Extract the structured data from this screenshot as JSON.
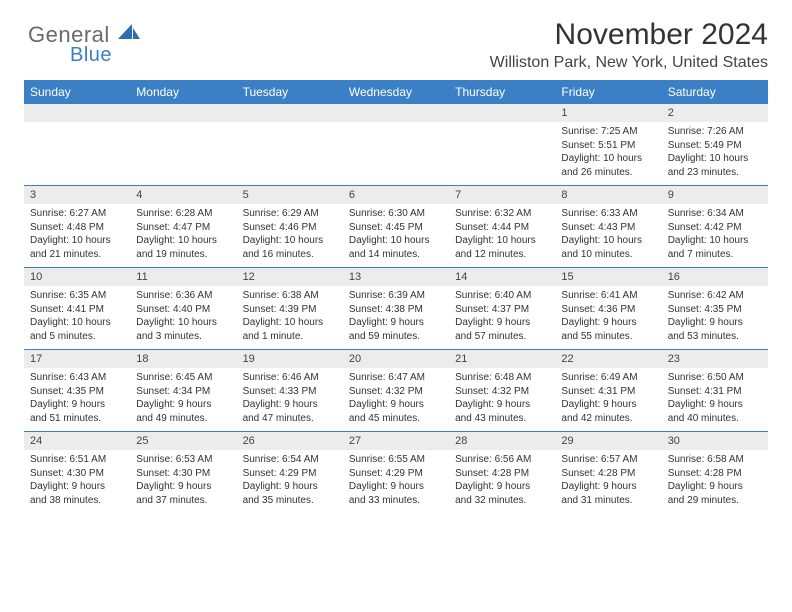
{
  "logo": {
    "text1": "General",
    "text2": "Blue",
    "sail_color": "#2f6db3"
  },
  "header": {
    "title": "November 2024",
    "subtitle": "Williston Park, New York, United States"
  },
  "colors": {
    "header_bg": "#3b7fc4",
    "header_text": "#ffffff",
    "daynum_bg": "#ececec",
    "row_divider": "#3b7fc4",
    "body_text": "#333333"
  },
  "day_headers": [
    "Sunday",
    "Monday",
    "Tuesday",
    "Wednesday",
    "Thursday",
    "Friday",
    "Saturday"
  ],
  "weeks": [
    [
      {
        "n": "",
        "sunrise": "",
        "sunset": "",
        "daylight": ""
      },
      {
        "n": "",
        "sunrise": "",
        "sunset": "",
        "daylight": ""
      },
      {
        "n": "",
        "sunrise": "",
        "sunset": "",
        "daylight": ""
      },
      {
        "n": "",
        "sunrise": "",
        "sunset": "",
        "daylight": ""
      },
      {
        "n": "",
        "sunrise": "",
        "sunset": "",
        "daylight": ""
      },
      {
        "n": "1",
        "sunrise": "Sunrise: 7:25 AM",
        "sunset": "Sunset: 5:51 PM",
        "daylight": "Daylight: 10 hours and 26 minutes."
      },
      {
        "n": "2",
        "sunrise": "Sunrise: 7:26 AM",
        "sunset": "Sunset: 5:49 PM",
        "daylight": "Daylight: 10 hours and 23 minutes."
      }
    ],
    [
      {
        "n": "3",
        "sunrise": "Sunrise: 6:27 AM",
        "sunset": "Sunset: 4:48 PM",
        "daylight": "Daylight: 10 hours and 21 minutes."
      },
      {
        "n": "4",
        "sunrise": "Sunrise: 6:28 AM",
        "sunset": "Sunset: 4:47 PM",
        "daylight": "Daylight: 10 hours and 19 minutes."
      },
      {
        "n": "5",
        "sunrise": "Sunrise: 6:29 AM",
        "sunset": "Sunset: 4:46 PM",
        "daylight": "Daylight: 10 hours and 16 minutes."
      },
      {
        "n": "6",
        "sunrise": "Sunrise: 6:30 AM",
        "sunset": "Sunset: 4:45 PM",
        "daylight": "Daylight: 10 hours and 14 minutes."
      },
      {
        "n": "7",
        "sunrise": "Sunrise: 6:32 AM",
        "sunset": "Sunset: 4:44 PM",
        "daylight": "Daylight: 10 hours and 12 minutes."
      },
      {
        "n": "8",
        "sunrise": "Sunrise: 6:33 AM",
        "sunset": "Sunset: 4:43 PM",
        "daylight": "Daylight: 10 hours and 10 minutes."
      },
      {
        "n": "9",
        "sunrise": "Sunrise: 6:34 AM",
        "sunset": "Sunset: 4:42 PM",
        "daylight": "Daylight: 10 hours and 7 minutes."
      }
    ],
    [
      {
        "n": "10",
        "sunrise": "Sunrise: 6:35 AM",
        "sunset": "Sunset: 4:41 PM",
        "daylight": "Daylight: 10 hours and 5 minutes."
      },
      {
        "n": "11",
        "sunrise": "Sunrise: 6:36 AM",
        "sunset": "Sunset: 4:40 PM",
        "daylight": "Daylight: 10 hours and 3 minutes."
      },
      {
        "n": "12",
        "sunrise": "Sunrise: 6:38 AM",
        "sunset": "Sunset: 4:39 PM",
        "daylight": "Daylight: 10 hours and 1 minute."
      },
      {
        "n": "13",
        "sunrise": "Sunrise: 6:39 AM",
        "sunset": "Sunset: 4:38 PM",
        "daylight": "Daylight: 9 hours and 59 minutes."
      },
      {
        "n": "14",
        "sunrise": "Sunrise: 6:40 AM",
        "sunset": "Sunset: 4:37 PM",
        "daylight": "Daylight: 9 hours and 57 minutes."
      },
      {
        "n": "15",
        "sunrise": "Sunrise: 6:41 AM",
        "sunset": "Sunset: 4:36 PM",
        "daylight": "Daylight: 9 hours and 55 minutes."
      },
      {
        "n": "16",
        "sunrise": "Sunrise: 6:42 AM",
        "sunset": "Sunset: 4:35 PM",
        "daylight": "Daylight: 9 hours and 53 minutes."
      }
    ],
    [
      {
        "n": "17",
        "sunrise": "Sunrise: 6:43 AM",
        "sunset": "Sunset: 4:35 PM",
        "daylight": "Daylight: 9 hours and 51 minutes."
      },
      {
        "n": "18",
        "sunrise": "Sunrise: 6:45 AM",
        "sunset": "Sunset: 4:34 PM",
        "daylight": "Daylight: 9 hours and 49 minutes."
      },
      {
        "n": "19",
        "sunrise": "Sunrise: 6:46 AM",
        "sunset": "Sunset: 4:33 PM",
        "daylight": "Daylight: 9 hours and 47 minutes."
      },
      {
        "n": "20",
        "sunrise": "Sunrise: 6:47 AM",
        "sunset": "Sunset: 4:32 PM",
        "daylight": "Daylight: 9 hours and 45 minutes."
      },
      {
        "n": "21",
        "sunrise": "Sunrise: 6:48 AM",
        "sunset": "Sunset: 4:32 PM",
        "daylight": "Daylight: 9 hours and 43 minutes."
      },
      {
        "n": "22",
        "sunrise": "Sunrise: 6:49 AM",
        "sunset": "Sunset: 4:31 PM",
        "daylight": "Daylight: 9 hours and 42 minutes."
      },
      {
        "n": "23",
        "sunrise": "Sunrise: 6:50 AM",
        "sunset": "Sunset: 4:31 PM",
        "daylight": "Daylight: 9 hours and 40 minutes."
      }
    ],
    [
      {
        "n": "24",
        "sunrise": "Sunrise: 6:51 AM",
        "sunset": "Sunset: 4:30 PM",
        "daylight": "Daylight: 9 hours and 38 minutes."
      },
      {
        "n": "25",
        "sunrise": "Sunrise: 6:53 AM",
        "sunset": "Sunset: 4:30 PM",
        "daylight": "Daylight: 9 hours and 37 minutes."
      },
      {
        "n": "26",
        "sunrise": "Sunrise: 6:54 AM",
        "sunset": "Sunset: 4:29 PM",
        "daylight": "Daylight: 9 hours and 35 minutes."
      },
      {
        "n": "27",
        "sunrise": "Sunrise: 6:55 AM",
        "sunset": "Sunset: 4:29 PM",
        "daylight": "Daylight: 9 hours and 33 minutes."
      },
      {
        "n": "28",
        "sunrise": "Sunrise: 6:56 AM",
        "sunset": "Sunset: 4:28 PM",
        "daylight": "Daylight: 9 hours and 32 minutes."
      },
      {
        "n": "29",
        "sunrise": "Sunrise: 6:57 AM",
        "sunset": "Sunset: 4:28 PM",
        "daylight": "Daylight: 9 hours and 31 minutes."
      },
      {
        "n": "30",
        "sunrise": "Sunrise: 6:58 AM",
        "sunset": "Sunset: 4:28 PM",
        "daylight": "Daylight: 9 hours and 29 minutes."
      }
    ]
  ]
}
